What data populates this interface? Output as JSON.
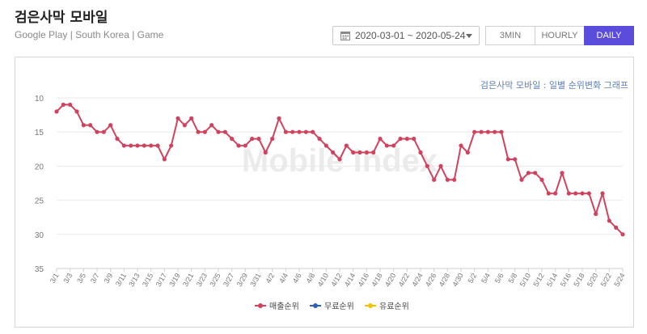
{
  "header": {
    "title": "검은사막 모바일",
    "subtitle": "Google Play | South Korea | Game"
  },
  "toolbar": {
    "date_range": "2020-03-01 ~ 2020-05-24",
    "granularity": [
      {
        "label": "3MIN",
        "active": false
      },
      {
        "label": "HOURLY",
        "active": false
      },
      {
        "label": "DAILY",
        "active": true
      }
    ],
    "active_color": "#5b4ddb"
  },
  "chart_data": {
    "type": "line",
    "title": "검은사막 모바일 : 일별 순위변화 그래프",
    "watermark": "Mobile Index",
    "y_reversed": true,
    "ylim": [
      10,
      35
    ],
    "yticks": [
      10,
      15,
      20,
      25,
      30,
      35
    ],
    "x_tick_labels": [
      "3/1",
      "3/3",
      "3/5",
      "3/7",
      "3/9",
      "3/11",
      "3/13",
      "3/15",
      "3/17",
      "3/19",
      "3/21",
      "3/23",
      "3/25",
      "3/27",
      "3/29",
      "3/31",
      "4/2",
      "4/4",
      "4/6",
      "4/8",
      "4/10",
      "4/12",
      "4/14",
      "4/16",
      "4/18",
      "4/20",
      "4/22",
      "4/24",
      "4/26",
      "4/28",
      "4/30",
      "5/2",
      "5/4",
      "5/6",
      "5/8",
      "5/10",
      "5/12",
      "5/14",
      "5/16",
      "5/18",
      "5/20",
      "5/22",
      "5/24"
    ],
    "legend_position": "bottom",
    "series": [
      {
        "name": "매출순위",
        "color": "#d0435e",
        "values": [
          12,
          11,
          11,
          12,
          14,
          14,
          15,
          15,
          14,
          16,
          17,
          17,
          17,
          17,
          17,
          17,
          19,
          17,
          13,
          14,
          13,
          15,
          15,
          14,
          15,
          15,
          16,
          17,
          17,
          16,
          16,
          18,
          16,
          13,
          15,
          15,
          15,
          15,
          15,
          16,
          17,
          18,
          19,
          17,
          18,
          18,
          18,
          18,
          16,
          17,
          17,
          16,
          16,
          16,
          18,
          20,
          22,
          20,
          22,
          22,
          17,
          18,
          15,
          15,
          15,
          15,
          15,
          19,
          19,
          22,
          21,
          21,
          22,
          24,
          24,
          21,
          24,
          24,
          24,
          24,
          27,
          24,
          28,
          29,
          30
        ]
      },
      {
        "name": "무료순위",
        "color": "#2f5fb0",
        "values": []
      },
      {
        "name": "유료순위",
        "color": "#f2c200",
        "values": []
      }
    ]
  }
}
